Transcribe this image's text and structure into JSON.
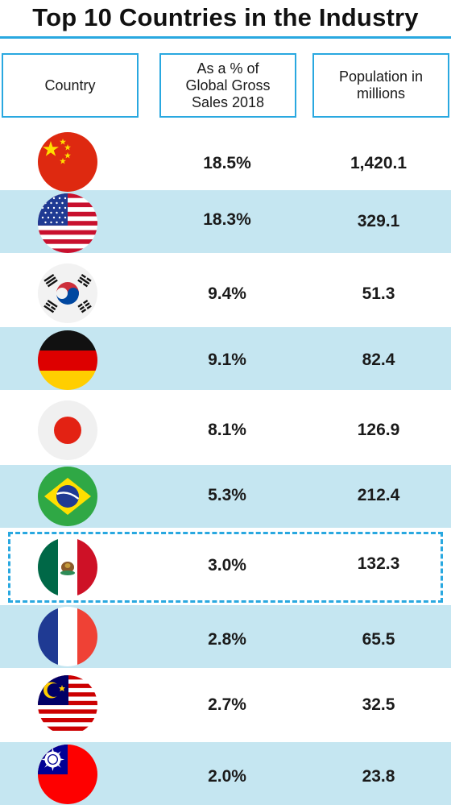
{
  "title": "Top 10 Countries in the Industry",
  "headers": {
    "country": "Country",
    "share": "As a % of Global Gross Sales 2018",
    "population": "Population in millions"
  },
  "rows": [
    {
      "flag": "china-flag-icon",
      "share": "18.5%",
      "population": "1,420.1"
    },
    {
      "flag": "usa-flag-icon",
      "share": "18.3%",
      "population": "329.1"
    },
    {
      "flag": "south-korea-flag-icon",
      "share": "9.4%",
      "population": "51.3"
    },
    {
      "flag": "germany-flag-icon",
      "share": "9.1%",
      "population": "82.4"
    },
    {
      "flag": "japan-flag-icon",
      "share": "8.1%",
      "population": "126.9"
    },
    {
      "flag": "brazil-flag-icon",
      "share": "5.3%",
      "population": "212.4"
    },
    {
      "flag": "mexico-flag-icon",
      "share": "3.0%",
      "population": "132.3",
      "highlighted": true
    },
    {
      "flag": "france-flag-icon",
      "share": "2.8%",
      "population": "65.5"
    },
    {
      "flag": "malaysia-flag-icon",
      "share": "2.7%",
      "population": "32.5"
    },
    {
      "flag": "taiwan-flag-icon",
      "share": "2.0%",
      "population": "23.8"
    }
  ],
  "colors": {
    "accent": "#29a8e0",
    "row_shade": "#c5e6f1"
  }
}
